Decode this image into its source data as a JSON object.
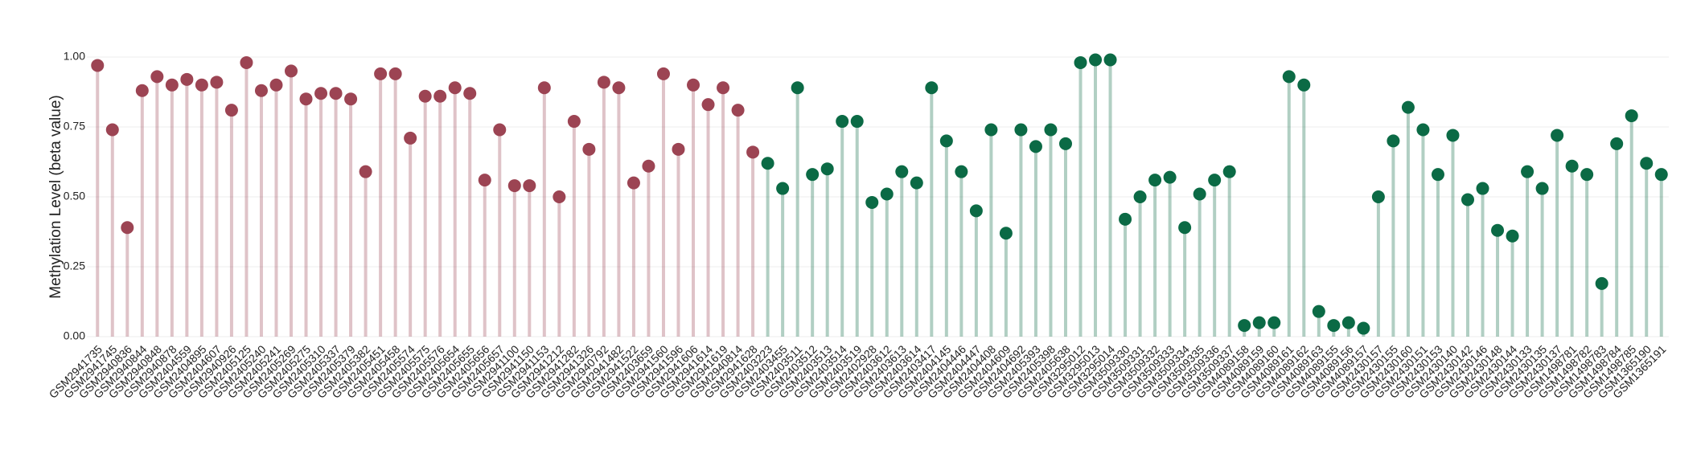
{
  "chart_data": {
    "type": "lollipop",
    "y_label": "Methylation Level (beta value)",
    "categories": [
      "GSM2941735",
      "GSM2941745",
      "GSM2940836",
      "GSM2940844",
      "GSM2940848",
      "GSM2940878",
      "GSM2404559",
      "GSM2404895",
      "GSM2404607",
      "GSM2940926",
      "GSM2405125",
      "GSM2405240",
      "GSM2405241",
      "GSM2405269",
      "GSM2405275",
      "GSM2405310",
      "GSM2405337",
      "GSM2405379",
      "GSM2405382",
      "GSM2405451",
      "GSM2405458",
      "GSM2405574",
      "GSM2405575",
      "GSM2405576",
      "GSM2405654",
      "GSM2405655",
      "GSM2405656",
      "GSM2405657",
      "GSM2941100",
      "GSM2941150",
      "GSM2941153",
      "GSM2941212",
      "GSM2941282",
      "GSM2941326",
      "GSM2940792",
      "GSM2941482",
      "GSM2941522",
      "GSM2403659",
      "GSM2941560",
      "GSM2941596",
      "GSM2941606",
      "GSM2941614",
      "GSM2941619",
      "GSM2940814",
      "GSM2941628",
      "GSM2403223",
      "GSM2403455",
      "GSM2403511",
      "GSM2403512",
      "GSM2403513",
      "GSM2403514",
      "GSM2403519",
      "GSM2402928",
      "GSM2403612",
      "GSM2403613",
      "GSM2403614",
      "GSM2403417",
      "GSM2404145",
      "GSM2404446",
      "GSM2404447",
      "GSM2404408",
      "GSM2404609",
      "GSM2404692",
      "GSM2405393",
      "GSM2405398",
      "GSM2405638",
      "GSM3295012",
      "GSM3295013",
      "GSM3295014",
      "GSM3509330",
      "GSM3509331",
      "GSM3509332",
      "GSM3509333",
      "GSM3509334",
      "GSM3509335",
      "GSM3509336",
      "GSM3509337",
      "GSM4089158",
      "GSM4089159",
      "GSM4089160",
      "GSM4089161",
      "GSM4089162",
      "GSM4089163",
      "GSM4089155",
      "GSM4089156",
      "GSM4089157",
      "GSM2430157",
      "GSM2430155",
      "GSM2430160",
      "GSM2430151",
      "GSM2430153",
      "GSM2430140",
      "GSM2430142",
      "GSM2430146",
      "GSM2430148",
      "GSM2430144",
      "GSM2430133",
      "GSM2430135",
      "GSM2430137",
      "GSM1498781",
      "GSM1498782",
      "GSM1498783",
      "GSM1498784",
      "GSM1498785",
      "GSM1365190",
      "GSM1365191"
    ],
    "series": [
      {
        "color": "#9c4453",
        "values": [
          0.97,
          0.74,
          0.39,
          0.88,
          0.93,
          0.9,
          0.92,
          0.9,
          0.91,
          0.81,
          0.98,
          0.88,
          0.9,
          0.95,
          0.85,
          0.87,
          0.87,
          0.85,
          0.59,
          0.94,
          0.94,
          0.71,
          0.86,
          0.86,
          0.89,
          0.87,
          0.56,
          0.74,
          0.54,
          0.54,
          0.89,
          0.5,
          0.77,
          0.67,
          0.91,
          0.89,
          0.55,
          0.61,
          0.94,
          0.67,
          0.9,
          0.83,
          0.89,
          0.81,
          0.66,
          null,
          null,
          null,
          null,
          null,
          null,
          null,
          null,
          null,
          null,
          null,
          null,
          null,
          null,
          null,
          null,
          null,
          null,
          null,
          null,
          null,
          null,
          null,
          null,
          null,
          null,
          null,
          null,
          null,
          null,
          null,
          null,
          null,
          null,
          null,
          null,
          null,
          null,
          null,
          null,
          null,
          null,
          null,
          null,
          null,
          null,
          null,
          null,
          null,
          null,
          null,
          null,
          null,
          null,
          null,
          null,
          null,
          null,
          null,
          null,
          null
        ]
      },
      {
        "color": "#0b6a45",
        "values": [
          null,
          null,
          null,
          null,
          null,
          null,
          null,
          null,
          null,
          null,
          null,
          null,
          null,
          null,
          null,
          null,
          null,
          null,
          null,
          null,
          null,
          null,
          null,
          null,
          null,
          null,
          null,
          null,
          null,
          null,
          null,
          null,
          null,
          null,
          null,
          null,
          null,
          null,
          null,
          null,
          null,
          null,
          null,
          null,
          null,
          0.62,
          0.53,
          0.89,
          0.58,
          0.6,
          0.77,
          0.77,
          0.48,
          0.51,
          0.59,
          0.55,
          0.89,
          0.7,
          0.59,
          0.45,
          0.74,
          0.37,
          0.74,
          0.68,
          0.74,
          0.69,
          0.98,
          0.99,
          0.99,
          0.42,
          0.5,
          0.56,
          0.57,
          0.39,
          0.51,
          0.56,
          0.59,
          0.04,
          0.05,
          0.05,
          0.93,
          0.9,
          0.09,
          0.04,
          0.05,
          0.03,
          0.5,
          0.7,
          0.82,
          0.74,
          0.58,
          0.72,
          0.49,
          0.53,
          0.38,
          0.36,
          0.59,
          0.53,
          0.72,
          0.61,
          0.58,
          0.19,
          0.69,
          0.79,
          0.62,
          0.58
        ]
      }
    ],
    "ylim": [
      0,
      1
    ],
    "yticks": [
      {
        "value": 0,
        "label": "0.00"
      },
      {
        "value": 0.25,
        "label": "0.25"
      },
      {
        "value": 0.5,
        "label": "0.50"
      },
      {
        "value": 0.75,
        "label": "0.75"
      },
      {
        "value": 1,
        "label": "1.00"
      }
    ],
    "grid": true
  }
}
